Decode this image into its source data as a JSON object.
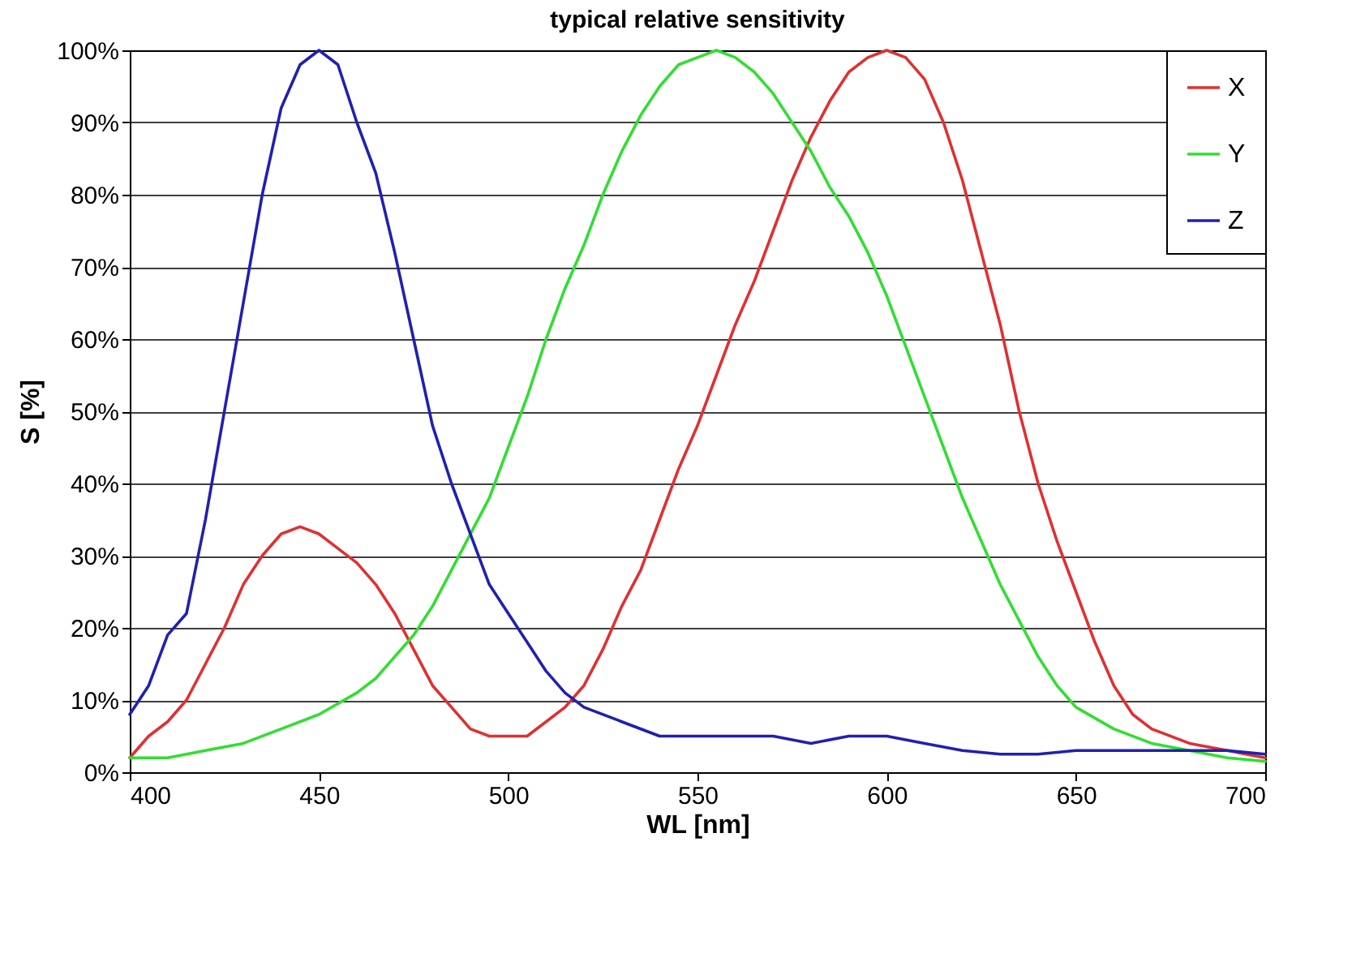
{
  "chart_data": {
    "type": "line",
    "title": "typical relative sensitivity",
    "xlabel": "WL [nm]",
    "ylabel": "S [%]",
    "xlim": [
      400,
      700
    ],
    "xticks": [
      400,
      450,
      500,
      550,
      600,
      650,
      700
    ],
    "ylim": [
      0,
      100
    ],
    "yticks": [
      {
        "value": 0,
        "label": "0%"
      },
      {
        "value": 10,
        "label": "10%"
      },
      {
        "value": 20,
        "label": "20%"
      },
      {
        "value": 30,
        "label": "30%"
      },
      {
        "value": 40,
        "label": "40%"
      },
      {
        "value": 50,
        "label": "50%"
      },
      {
        "value": 60,
        "label": "60%"
      },
      {
        "value": 70,
        "label": "70%"
      },
      {
        "value": 80,
        "label": "80%"
      },
      {
        "value": 90,
        "label": "90%"
      },
      {
        "value": 100,
        "label": "100%"
      }
    ],
    "grid": "y",
    "legend": "top right",
    "marker": "none",
    "line_style": "solid",
    "series": [
      {
        "name": "X",
        "color": "#e03030",
        "x": [
          400,
          405,
          410,
          415,
          420,
          425,
          430,
          435,
          440,
          445,
          450,
          455,
          460,
          465,
          470,
          475,
          480,
          485,
          490,
          495,
          500,
          505,
          510,
          515,
          520,
          525,
          530,
          535,
          540,
          545,
          550,
          555,
          560,
          565,
          570,
          575,
          580,
          585,
          590,
          595,
          600,
          605,
          610,
          615,
          620,
          625,
          630,
          635,
          640,
          645,
          650,
          655,
          660,
          665,
          670,
          680,
          690,
          700
        ],
        "values": [
          2,
          5,
          7,
          10,
          15,
          20,
          26,
          30,
          33,
          34,
          33,
          31,
          29,
          26,
          22,
          17,
          12,
          9,
          6,
          5,
          5,
          5,
          7,
          9,
          12,
          17,
          23,
          28,
          35,
          42,
          48,
          55,
          62,
          68,
          75,
          82,
          88,
          93,
          97,
          99,
          100,
          99,
          96,
          90,
          82,
          72,
          62,
          50,
          40,
          32,
          25,
          18,
          12,
          8,
          6,
          4,
          3,
          2
        ]
      },
      {
        "name": "Y",
        "color": "#33dd33",
        "x": [
          400,
          410,
          420,
          430,
          440,
          450,
          460,
          465,
          470,
          475,
          480,
          485,
          490,
          495,
          500,
          505,
          510,
          515,
          520,
          525,
          530,
          535,
          540,
          545,
          550,
          555,
          560,
          565,
          570,
          575,
          580,
          585,
          590,
          595,
          600,
          605,
          610,
          615,
          620,
          625,
          630,
          635,
          640,
          645,
          650,
          660,
          670,
          680,
          690,
          700
        ],
        "values": [
          2,
          2,
          3,
          4,
          6,
          8,
          11,
          13,
          16,
          19,
          23,
          28,
          33,
          38,
          45,
          52,
          60,
          67,
          73,
          80,
          86,
          91,
          95,
          98,
          99,
          100,
          99,
          97,
          94,
          90,
          86,
          81,
          77,
          72,
          66,
          59,
          52,
          45,
          38,
          32,
          26,
          21,
          16,
          12,
          9,
          6,
          4,
          3,
          2,
          1.5
        ]
      },
      {
        "name": "Z",
        "color": "#2020b0",
        "x": [
          400,
          405,
          410,
          415,
          420,
          425,
          430,
          435,
          440,
          445,
          450,
          455,
          460,
          465,
          470,
          475,
          480,
          485,
          490,
          495,
          500,
          505,
          510,
          515,
          520,
          530,
          540,
          550,
          560,
          570,
          580,
          590,
          600,
          610,
          620,
          630,
          640,
          650,
          660,
          670,
          680,
          690,
          700
        ],
        "values": [
          8,
          12,
          19,
          22,
          35,
          50,
          65,
          80,
          92,
          98,
          100,
          98,
          90,
          83,
          72,
          60,
          48,
          40,
          33,
          26,
          22,
          18,
          14,
          11,
          9,
          7,
          5,
          5,
          5,
          5,
          4,
          5,
          5,
          4,
          3,
          2.5,
          2.5,
          3,
          3,
          3,
          3,
          3,
          2.5
        ]
      }
    ]
  }
}
